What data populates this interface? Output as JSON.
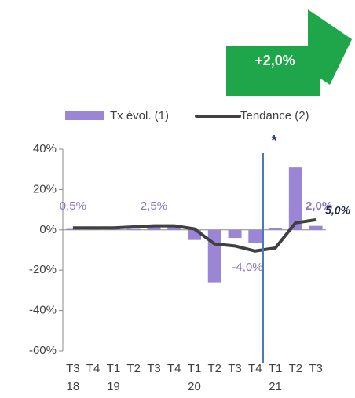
{
  "chart_data": {
    "type": "bar_line",
    "annotation": "+2,0%",
    "marker": "*",
    "categories": [
      "T3",
      "T4",
      "T1",
      "T2",
      "T3",
      "T4",
      "T1",
      "T2",
      "T3",
      "T4",
      "T1",
      "T2",
      "T3"
    ],
    "category_years": [
      "18",
      null,
      "19",
      null,
      null,
      null,
      "20",
      null,
      null,
      null,
      "21",
      null,
      null
    ],
    "series": [
      {
        "name": "Tx évol. (1)",
        "kind": "bar",
        "color": "#9b86d6",
        "values": [
          0.5,
          0.5,
          0.5,
          0.5,
          2.5,
          1.5,
          -5,
          -26,
          -4,
          -6.5,
          1,
          31,
          2
        ],
        "value_labels": [
          "0,5%",
          null,
          null,
          null,
          "2,5%",
          null,
          null,
          null,
          "-4,0%",
          null,
          null,
          null,
          "2,0%"
        ]
      },
      {
        "name": "Tendance (2)",
        "kind": "line",
        "color": "#404040",
        "values": [
          1,
          1,
          1,
          1.5,
          2,
          2,
          0.5,
          -7,
          -8,
          -10.5,
          -9,
          3.5,
          5
        ],
        "value_labels": [
          null,
          null,
          null,
          null,
          null,
          null,
          null,
          null,
          null,
          null,
          null,
          null,
          "5,0%"
        ]
      }
    ],
    "ylim": [
      -60,
      40
    ],
    "yticks": [
      {
        "value": -60,
        "label": "-60%"
      },
      {
        "value": -40,
        "label": "-40%"
      },
      {
        "value": -20,
        "label": "-20%"
      },
      {
        "value": 0,
        "label": "0%"
      },
      {
        "value": 20,
        "label": "20%"
      },
      {
        "value": 40,
        "label": "40%"
      }
    ]
  }
}
